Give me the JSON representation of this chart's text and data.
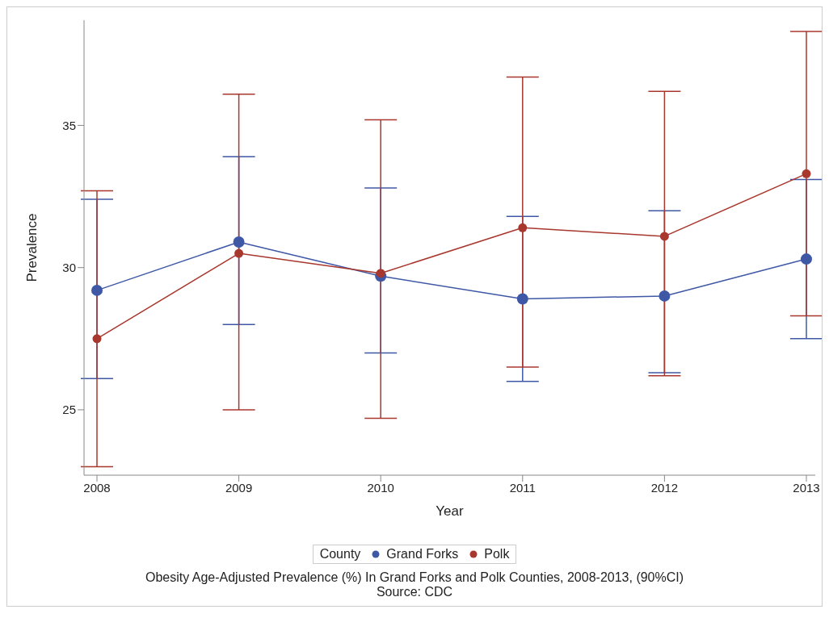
{
  "chart_data": {
    "type": "line",
    "xlabel": "Year",
    "ylabel": "Prevalence",
    "legend_title": "County",
    "categories": [
      "2008",
      "2009",
      "2010",
      "2011",
      "2012",
      "2013"
    ],
    "series": [
      {
        "name": "Grand Forks",
        "color": "#3f58a6",
        "values": [
          29.2,
          30.9,
          29.7,
          28.9,
          29.0,
          30.3
        ],
        "errors": [
          [
            26.1,
            32.4
          ],
          [
            28.0,
            33.9
          ],
          [
            27.0,
            32.8
          ],
          [
            26.0,
            31.8
          ],
          [
            26.3,
            32.0
          ],
          [
            27.5,
            33.1
          ]
        ]
      },
      {
        "name": "Polk",
        "color": "#a8372d",
        "values": [
          27.5,
          30.5,
          29.8,
          31.4,
          31.1,
          33.3
        ],
        "errors": [
          [
            23.0,
            32.7
          ],
          [
            25.0,
            36.1
          ],
          [
            24.7,
            35.2
          ],
          [
            26.5,
            36.7
          ],
          [
            26.2,
            36.2
          ],
          [
            28.3,
            38.3
          ]
        ]
      }
    ],
    "ylim": [
      22.7,
      38.7
    ],
    "yticks": [
      25,
      30,
      35
    ],
    "grid": false,
    "legend": "bottom",
    "marker": "circle",
    "line_style": "solid",
    "annotations": [
      "Obesity Age-Adjusted Prevalence (%) In Grand Forks and Polk Counties, 2008-2013, (90%CI) Source: CDC"
    ]
  }
}
